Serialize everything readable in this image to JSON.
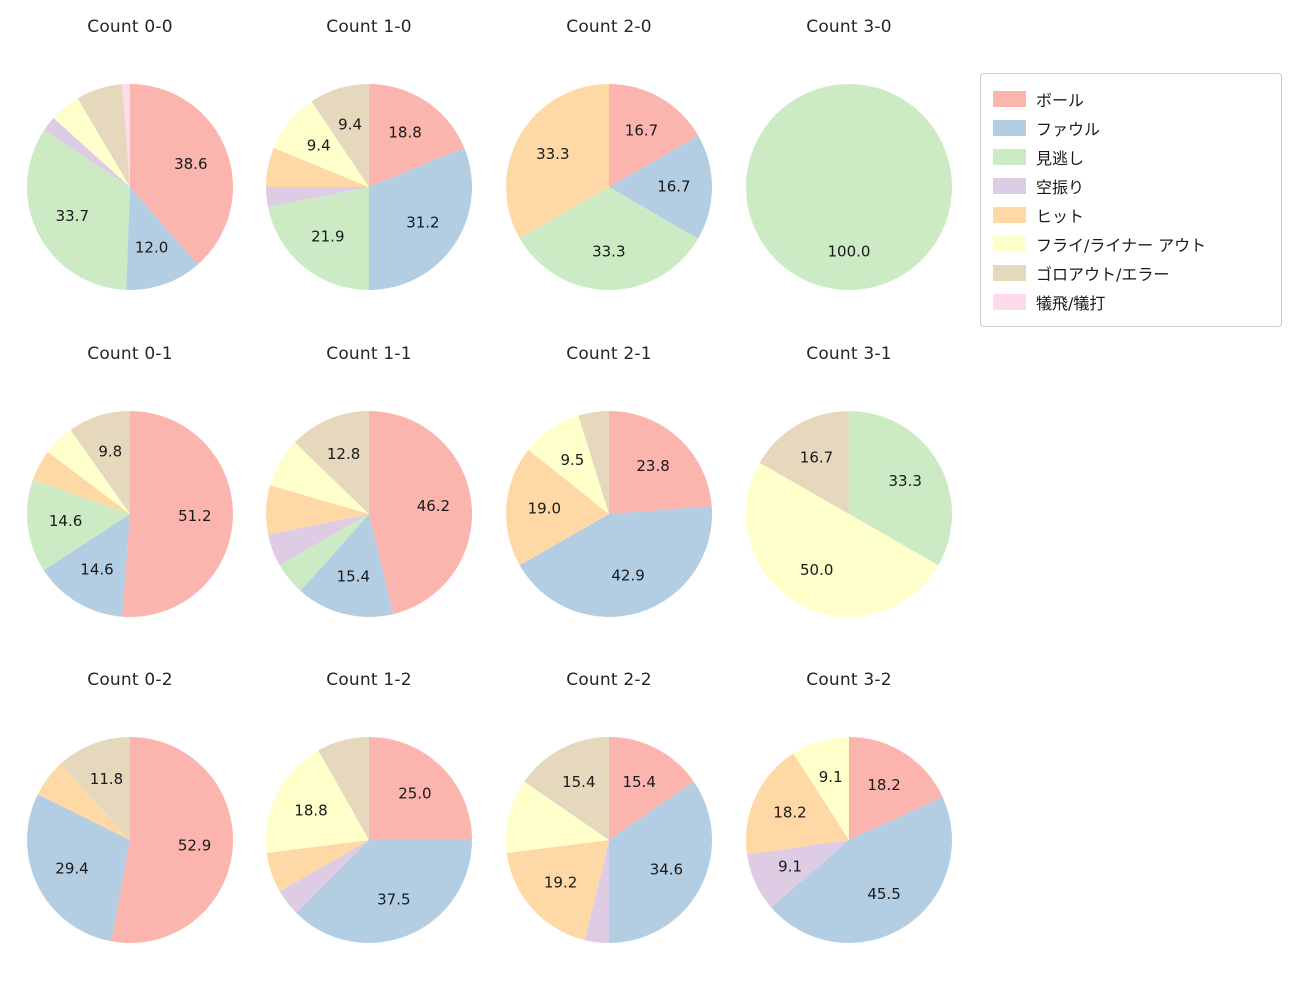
{
  "legend": {
    "items": [
      {
        "label": "ボール",
        "color": "#fbb4ae"
      },
      {
        "label": "ファウル",
        "color": "#b3cde3"
      },
      {
        "label": "見逃し",
        "color": "#ccebc5"
      },
      {
        "label": "空振り",
        "color": "#decbe4"
      },
      {
        "label": "ヒット",
        "color": "#fed9a6"
      },
      {
        "label": "フライ/ライナー アウト",
        "color": "#ffffcc"
      },
      {
        "label": "ゴロアウト/エラー",
        "color": "#e5d8bd"
      },
      {
        "label": "犠飛/犠打",
        "color": "#fddaec"
      }
    ]
  },
  "chart_data": [
    {
      "type": "pie",
      "title": "Count 0-0",
      "slices": [
        {
          "series": "ボール",
          "value": 38.6,
          "label": "38.6"
        },
        {
          "series": "ファウル",
          "value": 12.0,
          "label": "12.0"
        },
        {
          "series": "見逃し",
          "value": 33.7,
          "label": "33.7"
        },
        {
          "series": "空振り",
          "value": 2.4,
          "label": ""
        },
        {
          "series": "フライ/ライナー アウト",
          "value": 4.8,
          "label": ""
        },
        {
          "series": "ゴロアウト/エラー",
          "value": 7.3,
          "label": ""
        },
        {
          "series": "犠飛/犠打",
          "value": 1.2,
          "label": ""
        }
      ]
    },
    {
      "type": "pie",
      "title": "Count 1-0",
      "slices": [
        {
          "series": "ボール",
          "value": 18.8,
          "label": "18.8"
        },
        {
          "series": "ファウル",
          "value": 31.2,
          "label": "31.2"
        },
        {
          "series": "見逃し",
          "value": 21.9,
          "label": "21.9"
        },
        {
          "series": "空振り",
          "value": 3.1,
          "label": ""
        },
        {
          "series": "ヒット",
          "value": 6.2,
          "label": ""
        },
        {
          "series": "フライ/ライナー アウト",
          "value": 9.4,
          "label": "9.4"
        },
        {
          "series": "ゴロアウト/エラー",
          "value": 9.4,
          "label": "9.4"
        }
      ]
    },
    {
      "type": "pie",
      "title": "Count 2-0",
      "slices": [
        {
          "series": "ボール",
          "value": 16.7,
          "label": "16.7"
        },
        {
          "series": "ファウル",
          "value": 16.7,
          "label": "16.7"
        },
        {
          "series": "見逃し",
          "value": 33.3,
          "label": "33.3"
        },
        {
          "series": "ヒット",
          "value": 33.3,
          "label": "33.3"
        }
      ]
    },
    {
      "type": "pie",
      "title": "Count 3-0",
      "slices": [
        {
          "series": "見逃し",
          "value": 100.0,
          "label": "100.0"
        }
      ]
    },
    {
      "type": "pie",
      "title": "Count 0-1",
      "slices": [
        {
          "series": "ボール",
          "value": 51.2,
          "label": "51.2"
        },
        {
          "series": "ファウル",
          "value": 14.6,
          "label": "14.6"
        },
        {
          "series": "見逃し",
          "value": 14.6,
          "label": "14.6"
        },
        {
          "series": "ヒット",
          "value": 4.9,
          "label": ""
        },
        {
          "series": "フライ/ライナー アウト",
          "value": 4.9,
          "label": ""
        },
        {
          "series": "ゴロアウト/エラー",
          "value": 9.8,
          "label": "9.8"
        }
      ]
    },
    {
      "type": "pie",
      "title": "Count 1-1",
      "slices": [
        {
          "series": "ボール",
          "value": 46.2,
          "label": "46.2"
        },
        {
          "series": "ファウル",
          "value": 15.4,
          "label": "15.4"
        },
        {
          "series": "見逃し",
          "value": 5.1,
          "label": ""
        },
        {
          "series": "空振り",
          "value": 5.1,
          "label": ""
        },
        {
          "series": "ヒット",
          "value": 7.7,
          "label": ""
        },
        {
          "series": "フライ/ライナー アウト",
          "value": 7.7,
          "label": ""
        },
        {
          "series": "ゴロアウト/エラー",
          "value": 12.8,
          "label": "12.8"
        }
      ]
    },
    {
      "type": "pie",
      "title": "Count 2-1",
      "slices": [
        {
          "series": "ボール",
          "value": 23.8,
          "label": "23.8"
        },
        {
          "series": "ファウル",
          "value": 42.9,
          "label": "42.9"
        },
        {
          "series": "ヒット",
          "value": 19.0,
          "label": "19.0"
        },
        {
          "series": "フライ/ライナー アウト",
          "value": 9.5,
          "label": "9.5"
        },
        {
          "series": "ゴロアウト/エラー",
          "value": 4.8,
          "label": ""
        }
      ]
    },
    {
      "type": "pie",
      "title": "Count 3-1",
      "slices": [
        {
          "series": "見逃し",
          "value": 33.3,
          "label": "33.3"
        },
        {
          "series": "フライ/ライナー アウト",
          "value": 50.0,
          "label": "50.0"
        },
        {
          "series": "ゴロアウト/エラー",
          "value": 16.7,
          "label": "16.7"
        }
      ]
    },
    {
      "type": "pie",
      "title": "Count 0-2",
      "slices": [
        {
          "series": "ボール",
          "value": 52.9,
          "label": "52.9"
        },
        {
          "series": "ファウル",
          "value": 29.4,
          "label": "29.4"
        },
        {
          "series": "ヒット",
          "value": 5.9,
          "label": ""
        },
        {
          "series": "ゴロアウト/エラー",
          "value": 11.8,
          "label": "11.8"
        }
      ]
    },
    {
      "type": "pie",
      "title": "Count 1-2",
      "slices": [
        {
          "series": "ボール",
          "value": 25.0,
          "label": "25.0"
        },
        {
          "series": "ファウル",
          "value": 37.5,
          "label": "37.5"
        },
        {
          "series": "空振り",
          "value": 4.2,
          "label": ""
        },
        {
          "series": "ヒット",
          "value": 6.3,
          "label": ""
        },
        {
          "series": "フライ/ライナー アウト",
          "value": 18.8,
          "label": "18.8"
        },
        {
          "series": "ゴロアウト/エラー",
          "value": 8.2,
          "label": ""
        }
      ]
    },
    {
      "type": "pie",
      "title": "Count 2-2",
      "slices": [
        {
          "series": "ボール",
          "value": 15.4,
          "label": "15.4"
        },
        {
          "series": "ファウル",
          "value": 34.6,
          "label": "34.6"
        },
        {
          "series": "空振り",
          "value": 3.8,
          "label": ""
        },
        {
          "series": "ヒット",
          "value": 19.2,
          "label": "19.2"
        },
        {
          "series": "フライ/ライナー アウト",
          "value": 11.6,
          "label": ""
        },
        {
          "series": "ゴロアウト/エラー",
          "value": 15.4,
          "label": "15.4"
        }
      ]
    },
    {
      "type": "pie",
      "title": "Count 3-2",
      "slices": [
        {
          "series": "ボール",
          "value": 18.2,
          "label": "18.2"
        },
        {
          "series": "ファウル",
          "value": 45.5,
          "label": "45.5"
        },
        {
          "series": "空振り",
          "value": 9.1,
          "label": "9.1"
        },
        {
          "series": "ヒット",
          "value": 18.2,
          "label": "18.2"
        },
        {
          "series": "フライ/ライナー アウト",
          "value": 9.1,
          "label": "9.1"
        }
      ]
    }
  ]
}
